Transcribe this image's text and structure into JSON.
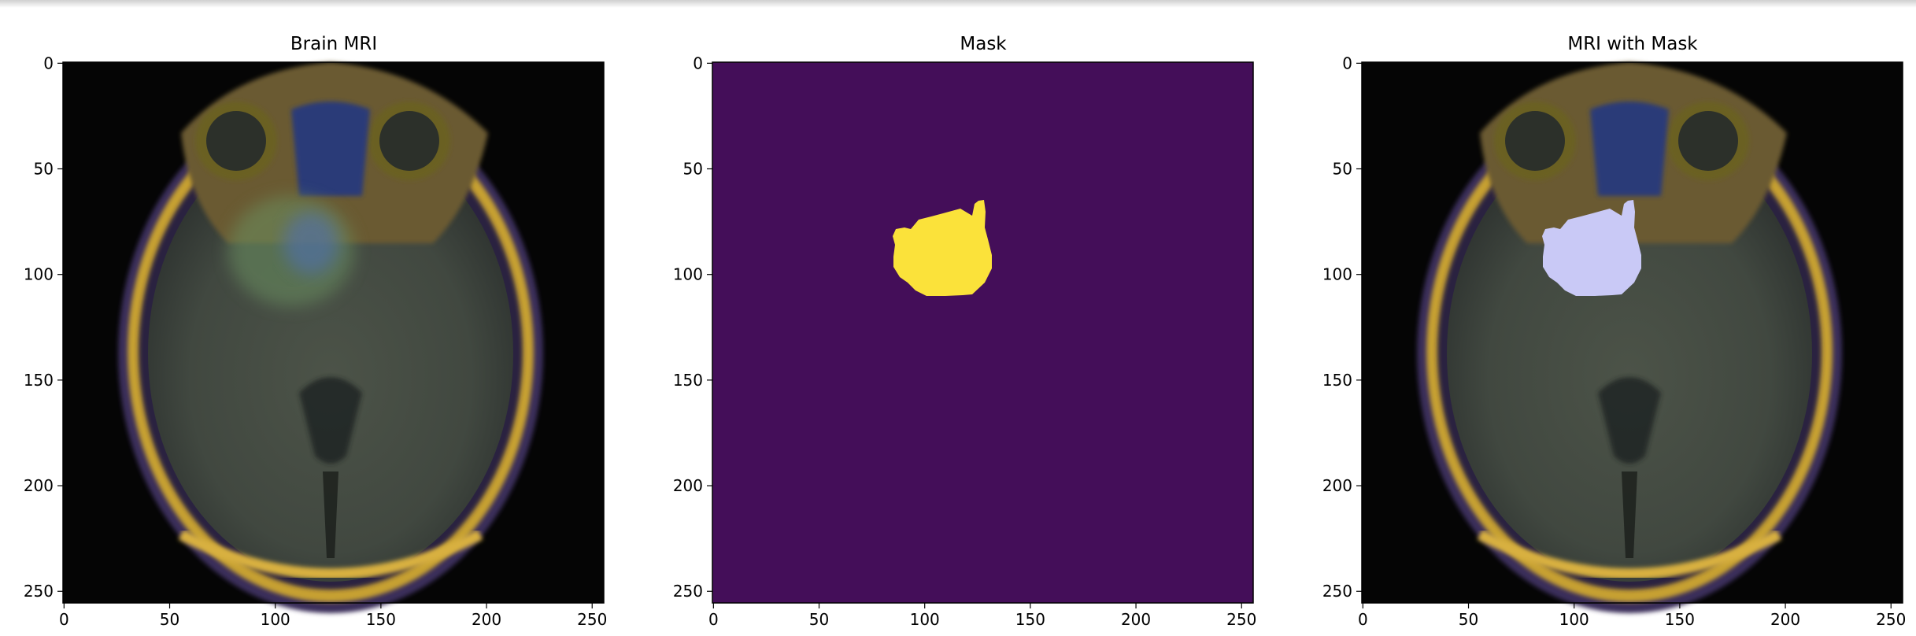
{
  "panels": [
    {
      "title": "Brain MRI",
      "type": "mri"
    },
    {
      "title": "Mask",
      "type": "mask"
    },
    {
      "title": "MRI with Mask",
      "type": "overlay"
    }
  ],
  "x_ticks": [
    "0",
    "50",
    "100",
    "150",
    "200",
    "250"
  ],
  "y_ticks": [
    "0",
    "50",
    "100",
    "150",
    "200",
    "250"
  ],
  "image_size": [
    256,
    256
  ],
  "colors": {
    "mask_background": "#440e59",
    "mask_foreground": "#fbe23a",
    "overlay_lesion": "#c9c9f6",
    "skull_ring": "#c6a030",
    "brain_tissue": "#454b44"
  }
}
